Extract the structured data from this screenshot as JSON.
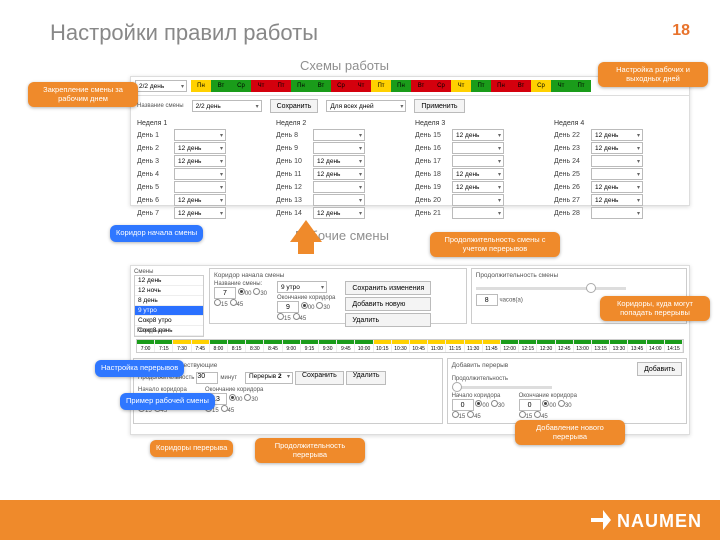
{
  "title": "Настройки правил работы",
  "page_number": "18",
  "subtitle_schemes": "Схемы работы",
  "subtitle_shifts": "Рабочие смены",
  "logo_text": "NAUMEN",
  "colors": {
    "accent": "#ef8a2b",
    "callout_blue": "#2f77ff",
    "green": "#1a9c1a",
    "yellow": "#ffd100",
    "red": "#d4000d"
  },
  "weekdays": [
    "Пн",
    "Вт",
    "Ср",
    "Чт",
    "Пт"
  ],
  "scheme_panel": {
    "scheme_field_label": "Название смены",
    "scheme_value": "2/2 день",
    "save": "Сохранить",
    "scope": "Для всех дней",
    "apply": "Применить",
    "weeks": [
      {
        "title": "Неделя 1",
        "days": [
          [
            "День 1",
            ""
          ],
          [
            "День 2",
            "12 день"
          ],
          [
            "День 3",
            "12 день"
          ],
          [
            "День 4",
            ""
          ],
          [
            "День 5",
            ""
          ],
          [
            "День 6",
            "12 день"
          ],
          [
            "День 7",
            "12 день"
          ]
        ]
      },
      {
        "title": "Неделя 2",
        "days": [
          [
            "День 8",
            ""
          ],
          [
            "День 9",
            ""
          ],
          [
            "День 10",
            "12 день"
          ],
          [
            "День 11",
            "12 день"
          ],
          [
            "День 12",
            ""
          ],
          [
            "День 13",
            ""
          ],
          [
            "День 14",
            "12 день"
          ]
        ]
      },
      {
        "title": "Неделя 3",
        "days": [
          [
            "День 15",
            "12 день"
          ],
          [
            "День 16",
            ""
          ],
          [
            "День 17",
            ""
          ],
          [
            "День 18",
            "12 день"
          ],
          [
            "День 19",
            "12 день"
          ],
          [
            "День 20",
            ""
          ],
          [
            "День 21",
            ""
          ]
        ]
      },
      {
        "title": "Неделя 4",
        "days": [
          [
            "День 22",
            "12 день"
          ],
          [
            "День 23",
            "12 день"
          ],
          [
            "День 24",
            ""
          ],
          [
            "День 25",
            ""
          ],
          [
            "День 26",
            "12 день"
          ],
          [
            "День 27",
            "12 день"
          ],
          [
            "День 28",
            ""
          ]
        ]
      }
    ]
  },
  "shift_panel": {
    "list_header": "Смены",
    "shifts": [
      "12 день",
      "12 ночь",
      "8 день",
      "9 утро",
      "Сокр8 утро",
      "Сокр8 день"
    ],
    "selected_index": 3,
    "corridor_title": "Коридор начала смены",
    "shift_name_label": "Название смены:",
    "shift_name_value": "9 утро",
    "corridor_end": "Окончание коридора",
    "save_changes": "Сохранить изменения",
    "add_new": "Добавить новую",
    "delete": "Удалить",
    "start_val": "7",
    "end_val": "9",
    "minutes": [
      "00",
      "30",
      "15",
      "45"
    ],
    "duration_title": "Продолжительность смены",
    "duration_val": "8",
    "duration_unit": "часов(а)",
    "breaks_title": "Перерывы",
    "timeline_ticks": [
      "7:00",
      "7:15",
      "7:30",
      "7:45",
      "8:00",
      "8:15",
      "8:30",
      "8:45",
      "9:00",
      "9:15",
      "9:30",
      "9:45",
      "10:00",
      "10:15",
      "10:30",
      "10:45",
      "11:00",
      "11:15",
      "11:30",
      "11:45",
      "12:00",
      "12:15",
      "12:30",
      "12:45",
      "13:00",
      "13:15",
      "13:30",
      "13:45",
      "14:00",
      "14:15"
    ],
    "exist_breaks_title": "Перерывы существующие",
    "dur_label": "Продолжительность",
    "dur_val": "30",
    "dur_unit": "минут",
    "break_label": "Перерыв",
    "break_num": "2",
    "save2": "Сохранить",
    "start_corr": "Начало коридора",
    "end_corr": "Окончание коридора",
    "sc_val": "10",
    "ec_val": "13",
    "add_break_title": "Добавить перерыв",
    "add_break_btn": "Добавить",
    "nb_start": "0",
    "nb_end": "0"
  },
  "callouts": {
    "c1": "Закрепление смены за рабочим днем",
    "c2": "Настройка рабочих и выходных дней",
    "c3": "Коридор начала смены",
    "c4": "Продолжительность смены с учетом перерывов",
    "c5": "Коридоры, куда могут попадать перерывы",
    "c6": "Настройка перерывов",
    "c7": "Пример рабочей смены",
    "c8": "Коридоры перерыва",
    "c9": "Продолжительность перерыва",
    "c10": "Добавление нового перерыва"
  }
}
